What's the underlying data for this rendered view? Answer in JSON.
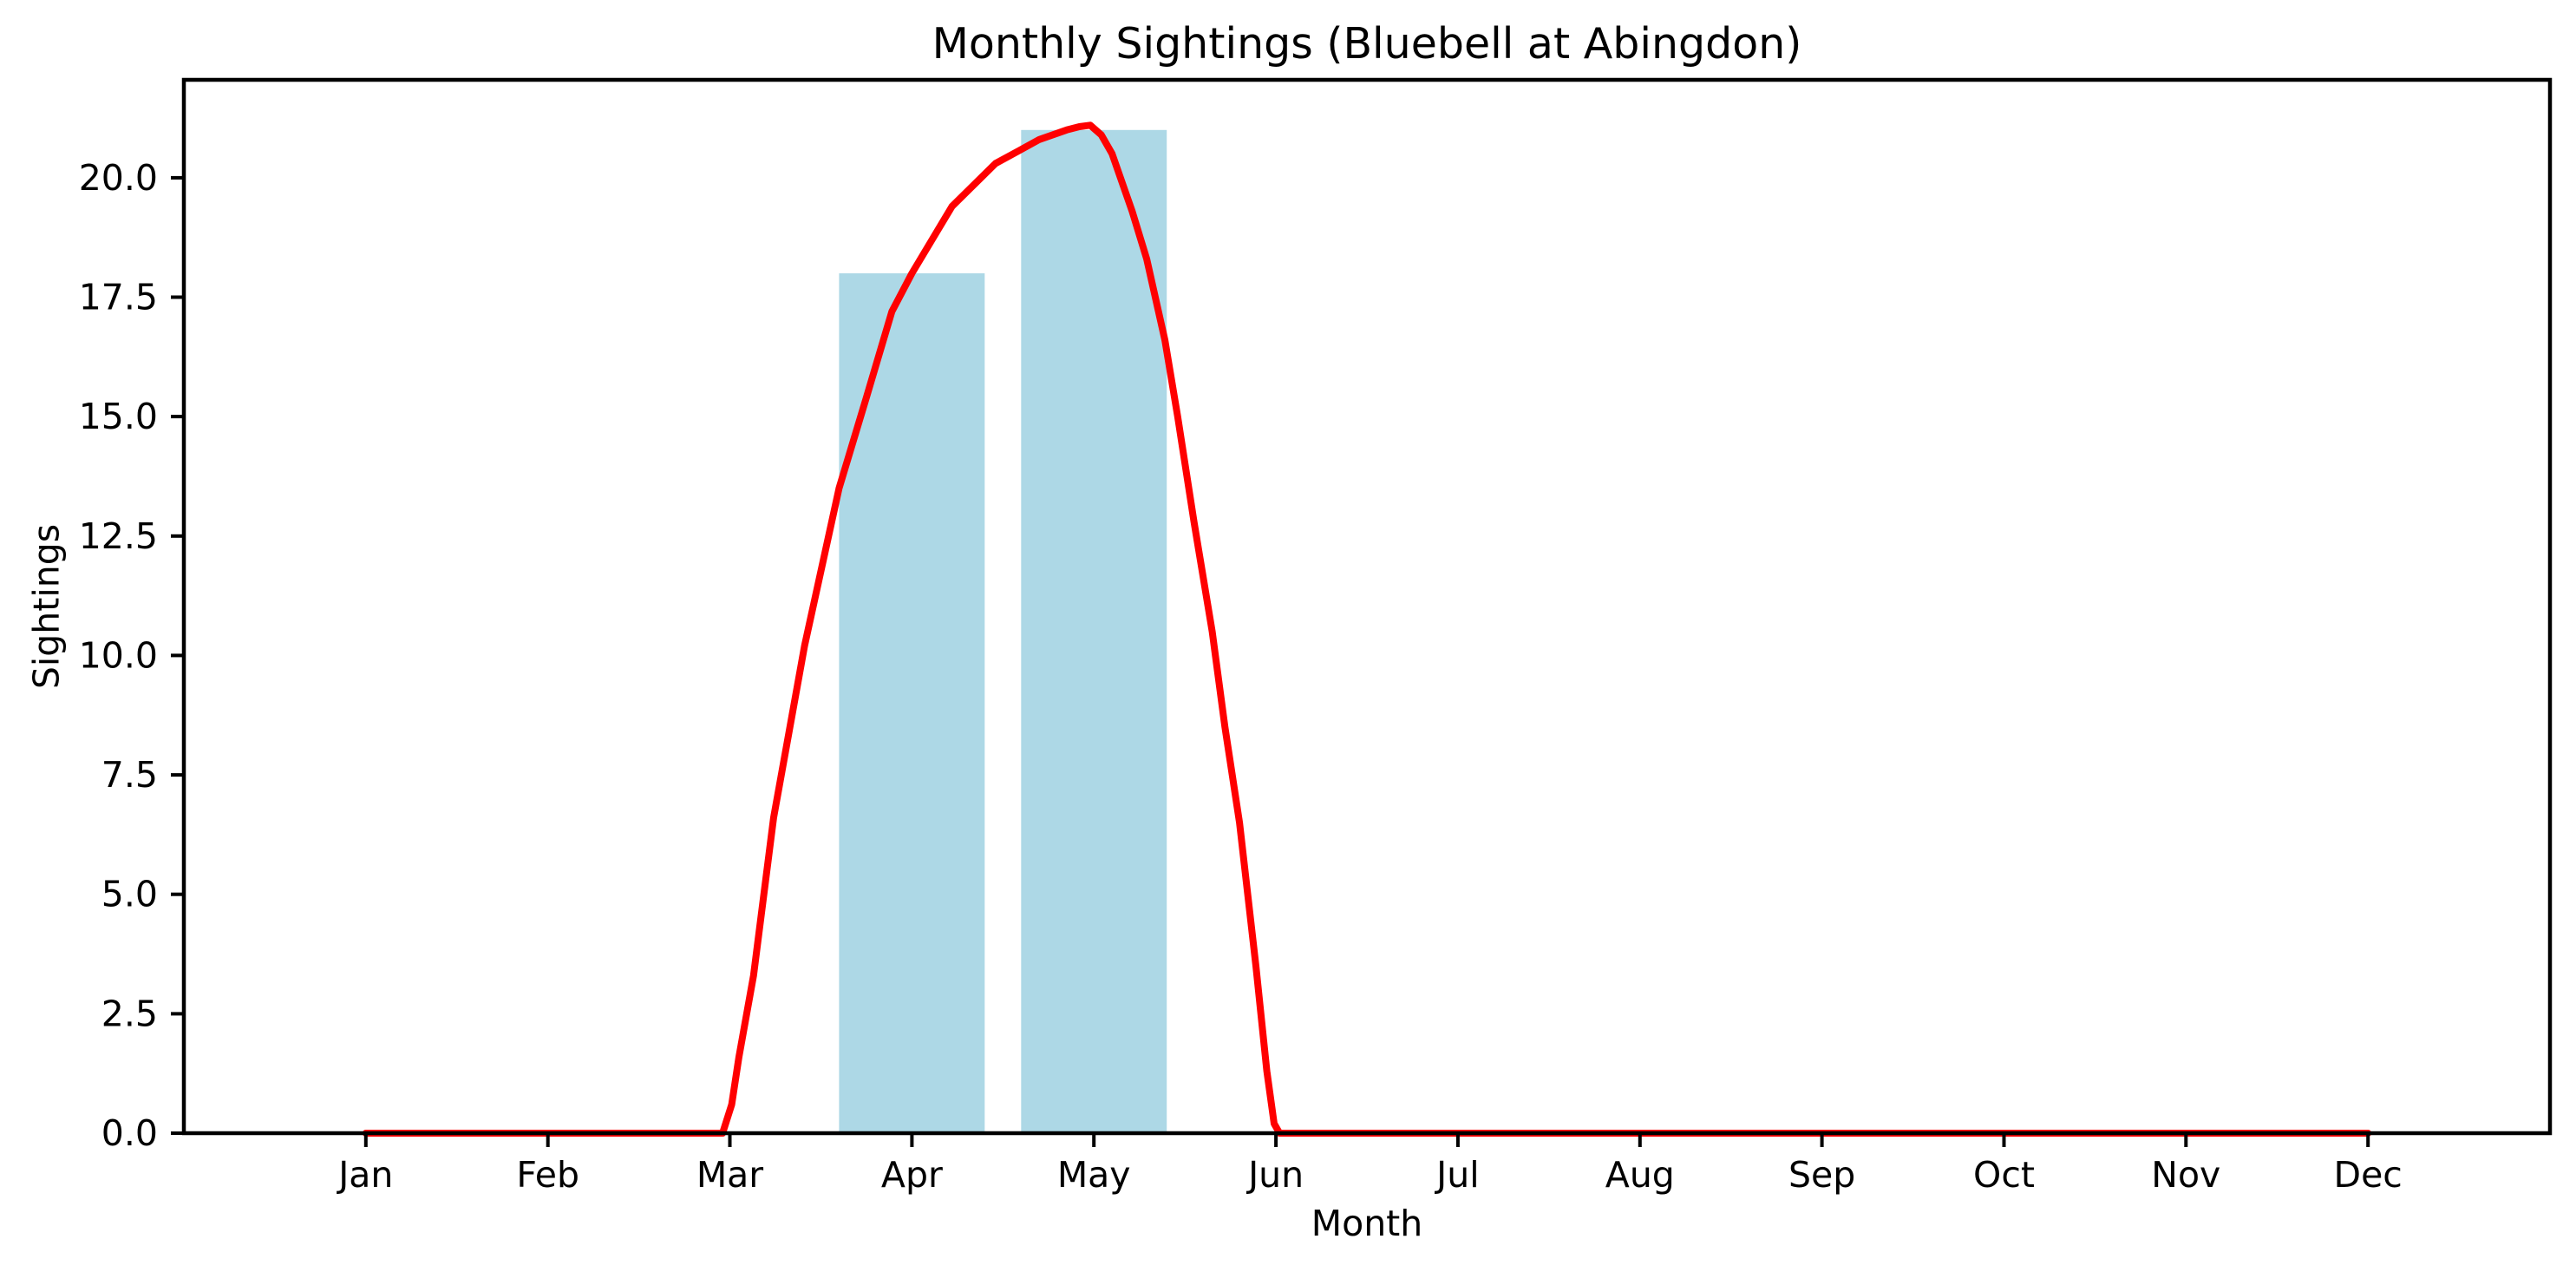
{
  "figure": {
    "background": "#ffffff",
    "text_color": "#000000"
  },
  "chart_data": {
    "type": "bar",
    "title": "Monthly Sightings (Bluebell at Abingdon)",
    "xlabel": "Month",
    "ylabel": "Sightings",
    "categories": [
      "Jan",
      "Feb",
      "Mar",
      "Apr",
      "May",
      "Jun",
      "Jul",
      "Aug",
      "Sep",
      "Oct",
      "Nov",
      "Dec"
    ],
    "series": [
      {
        "name": "monthly-sightings-bars",
        "type": "bar",
        "color": "#ADD8E6",
        "bar_width_units": 0.8,
        "values": [
          0,
          0,
          0,
          18,
          21,
          0,
          0,
          0,
          0,
          0,
          0,
          0
        ]
      },
      {
        "name": "smoothed-sightings-line",
        "type": "line",
        "color": "#FF0000",
        "stroke_width": 8,
        "points": [
          [
            0,
            0
          ],
          [
            0.5,
            0
          ],
          [
            1,
            0
          ],
          [
            1.5,
            0
          ],
          [
            1.96,
            0
          ],
          [
            2.01,
            0.6
          ],
          [
            2.05,
            1.6
          ],
          [
            2.13,
            3.3
          ],
          [
            2.24,
            6.6
          ],
          [
            2.41,
            10.2
          ],
          [
            2.6,
            13.5
          ],
          [
            2.75,
            15.4
          ],
          [
            2.89,
            17.2
          ],
          [
            3.0,
            18.0
          ],
          [
            3.22,
            19.4
          ],
          [
            3.46,
            20.3
          ],
          [
            3.58,
            20.55
          ],
          [
            3.7,
            20.8
          ],
          [
            3.85,
            21.0
          ],
          [
            3.92,
            21.07
          ],
          [
            3.98,
            21.1
          ],
          [
            4.04,
            20.9
          ],
          [
            4.1,
            20.5
          ],
          [
            4.21,
            19.3
          ],
          [
            4.29,
            18.3
          ],
          [
            4.39,
            16.6
          ],
          [
            4.46,
            15.0
          ],
          [
            4.55,
            12.8
          ],
          [
            4.65,
            10.5
          ],
          [
            4.72,
            8.5
          ],
          [
            4.8,
            6.5
          ],
          [
            4.89,
            3.5
          ],
          [
            4.95,
            1.3
          ],
          [
            4.99,
            0.2
          ],
          [
            5.02,
            0
          ],
          [
            5.5,
            0
          ],
          [
            6,
            0
          ],
          [
            7,
            0
          ],
          [
            8,
            0
          ],
          [
            9,
            0
          ],
          [
            10,
            0
          ],
          [
            11,
            0
          ]
        ]
      }
    ],
    "yticks": {
      "values": [
        0,
        2.5,
        5,
        7.5,
        10,
        12.5,
        15,
        17.5,
        20
      ],
      "labels": [
        "0.0",
        "2.5",
        "5.0",
        "7.5",
        "10.0",
        "12.5",
        "15.0",
        "17.5",
        "20.0"
      ]
    },
    "xlim": [
      -1,
      12
    ],
    "ylim": [
      0,
      22.05
    ],
    "grid": false,
    "legend": null,
    "axes_color": "#000000",
    "tick_color": "#000000"
  }
}
